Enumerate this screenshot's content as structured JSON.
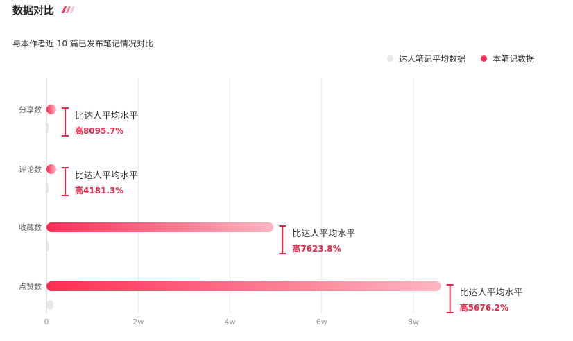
{
  "header": {
    "title": "数据对比",
    "subtitle": "与本作者近 10 篇已发布笔记情况对比"
  },
  "legend": {
    "items": [
      {
        "label": "达人笔记平均数据",
        "color": "#e6e6e6"
      },
      {
        "label": "本笔记数据",
        "color": "#ff2d55"
      }
    ]
  },
  "chart_data": {
    "type": "bar",
    "orientation": "horizontal",
    "categories": [
      "分享数",
      "评论数",
      "收藏数",
      "点赞数"
    ],
    "series": [
      {
        "name": "本笔记数据",
        "values": [
          2000,
          1000,
          49500,
          86000
        ],
        "color": "#ff2d55"
      },
      {
        "name": "达人笔记平均数据",
        "values": [
          30,
          30,
          600,
          1500
        ],
        "color": "#e6e6e6"
      }
    ],
    "xticks": [
      {
        "value": 0,
        "label": "0"
      },
      {
        "value": 20000,
        "label": "2w"
      },
      {
        "value": 40000,
        "label": "4w"
      },
      {
        "value": 60000,
        "label": "6w"
      },
      {
        "value": 80000,
        "label": "8w"
      }
    ],
    "xlim": [
      0,
      80000
    ],
    "grid": true,
    "legend_position": "top-right",
    "annotations": [
      {
        "category": "分享数",
        "line1": "比达人平均水平",
        "line2": "高8095.7%"
      },
      {
        "category": "评论数",
        "line1": "比达人平均水平",
        "line2": "高4181.3%"
      },
      {
        "category": "收藏数",
        "line1": "比达人平均水平",
        "line2": "高7623.8%"
      },
      {
        "category": "点赞数",
        "line1": "比达人平均水平",
        "line2": "高5676.2%"
      }
    ]
  }
}
